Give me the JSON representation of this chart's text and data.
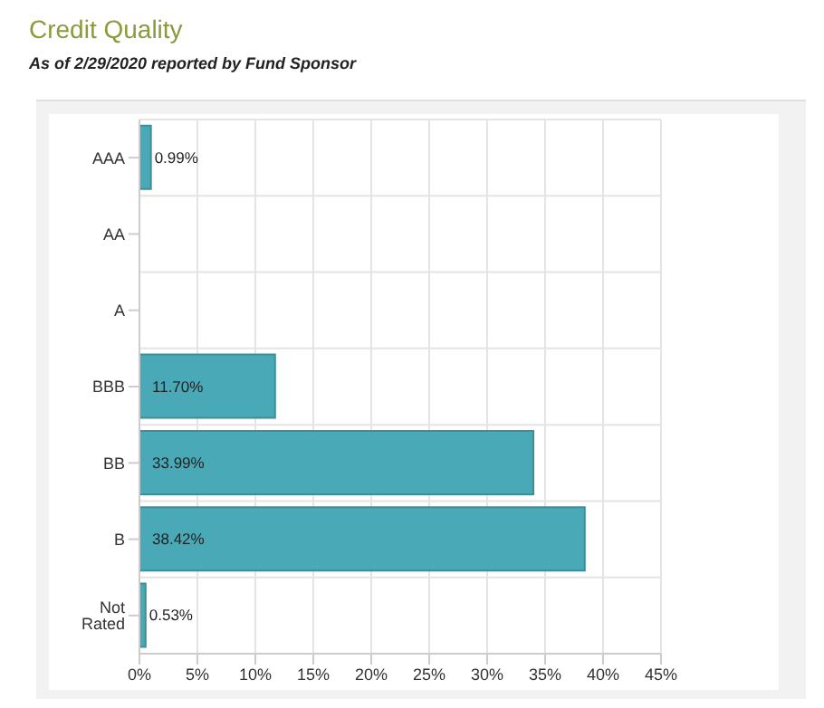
{
  "chart_data": {
    "type": "bar",
    "orientation": "horizontal",
    "title": "Credit Quality",
    "subtitle": "As of 2/29/2020 reported by Fund Sponsor",
    "categories": [
      "AAA",
      "AA",
      "A",
      "BBB",
      "BB",
      "B",
      "Not Rated"
    ],
    "values": [
      0.99,
      null,
      null,
      11.7,
      33.99,
      38.42,
      0.53
    ],
    "value_labels": [
      "0.99%",
      null,
      null,
      "11.70%",
      "33.99%",
      "38.42%",
      "0.53%"
    ],
    "color": "#4aa9b6",
    "xlim": [
      0,
      45
    ],
    "xticks": [
      {
        "value": 0,
        "label": "0%"
      },
      {
        "value": 5,
        "label": "5%"
      },
      {
        "value": 10,
        "label": "10%"
      },
      {
        "value": 15,
        "label": "15%"
      },
      {
        "value": 20,
        "label": "20%"
      },
      {
        "value": 25,
        "label": "25%"
      },
      {
        "value": 30,
        "label": "30%"
      },
      {
        "value": 35,
        "label": "35%"
      },
      {
        "value": 40,
        "label": "40%"
      },
      {
        "value": 45,
        "label": "45%"
      }
    ],
    "grid": true
  }
}
